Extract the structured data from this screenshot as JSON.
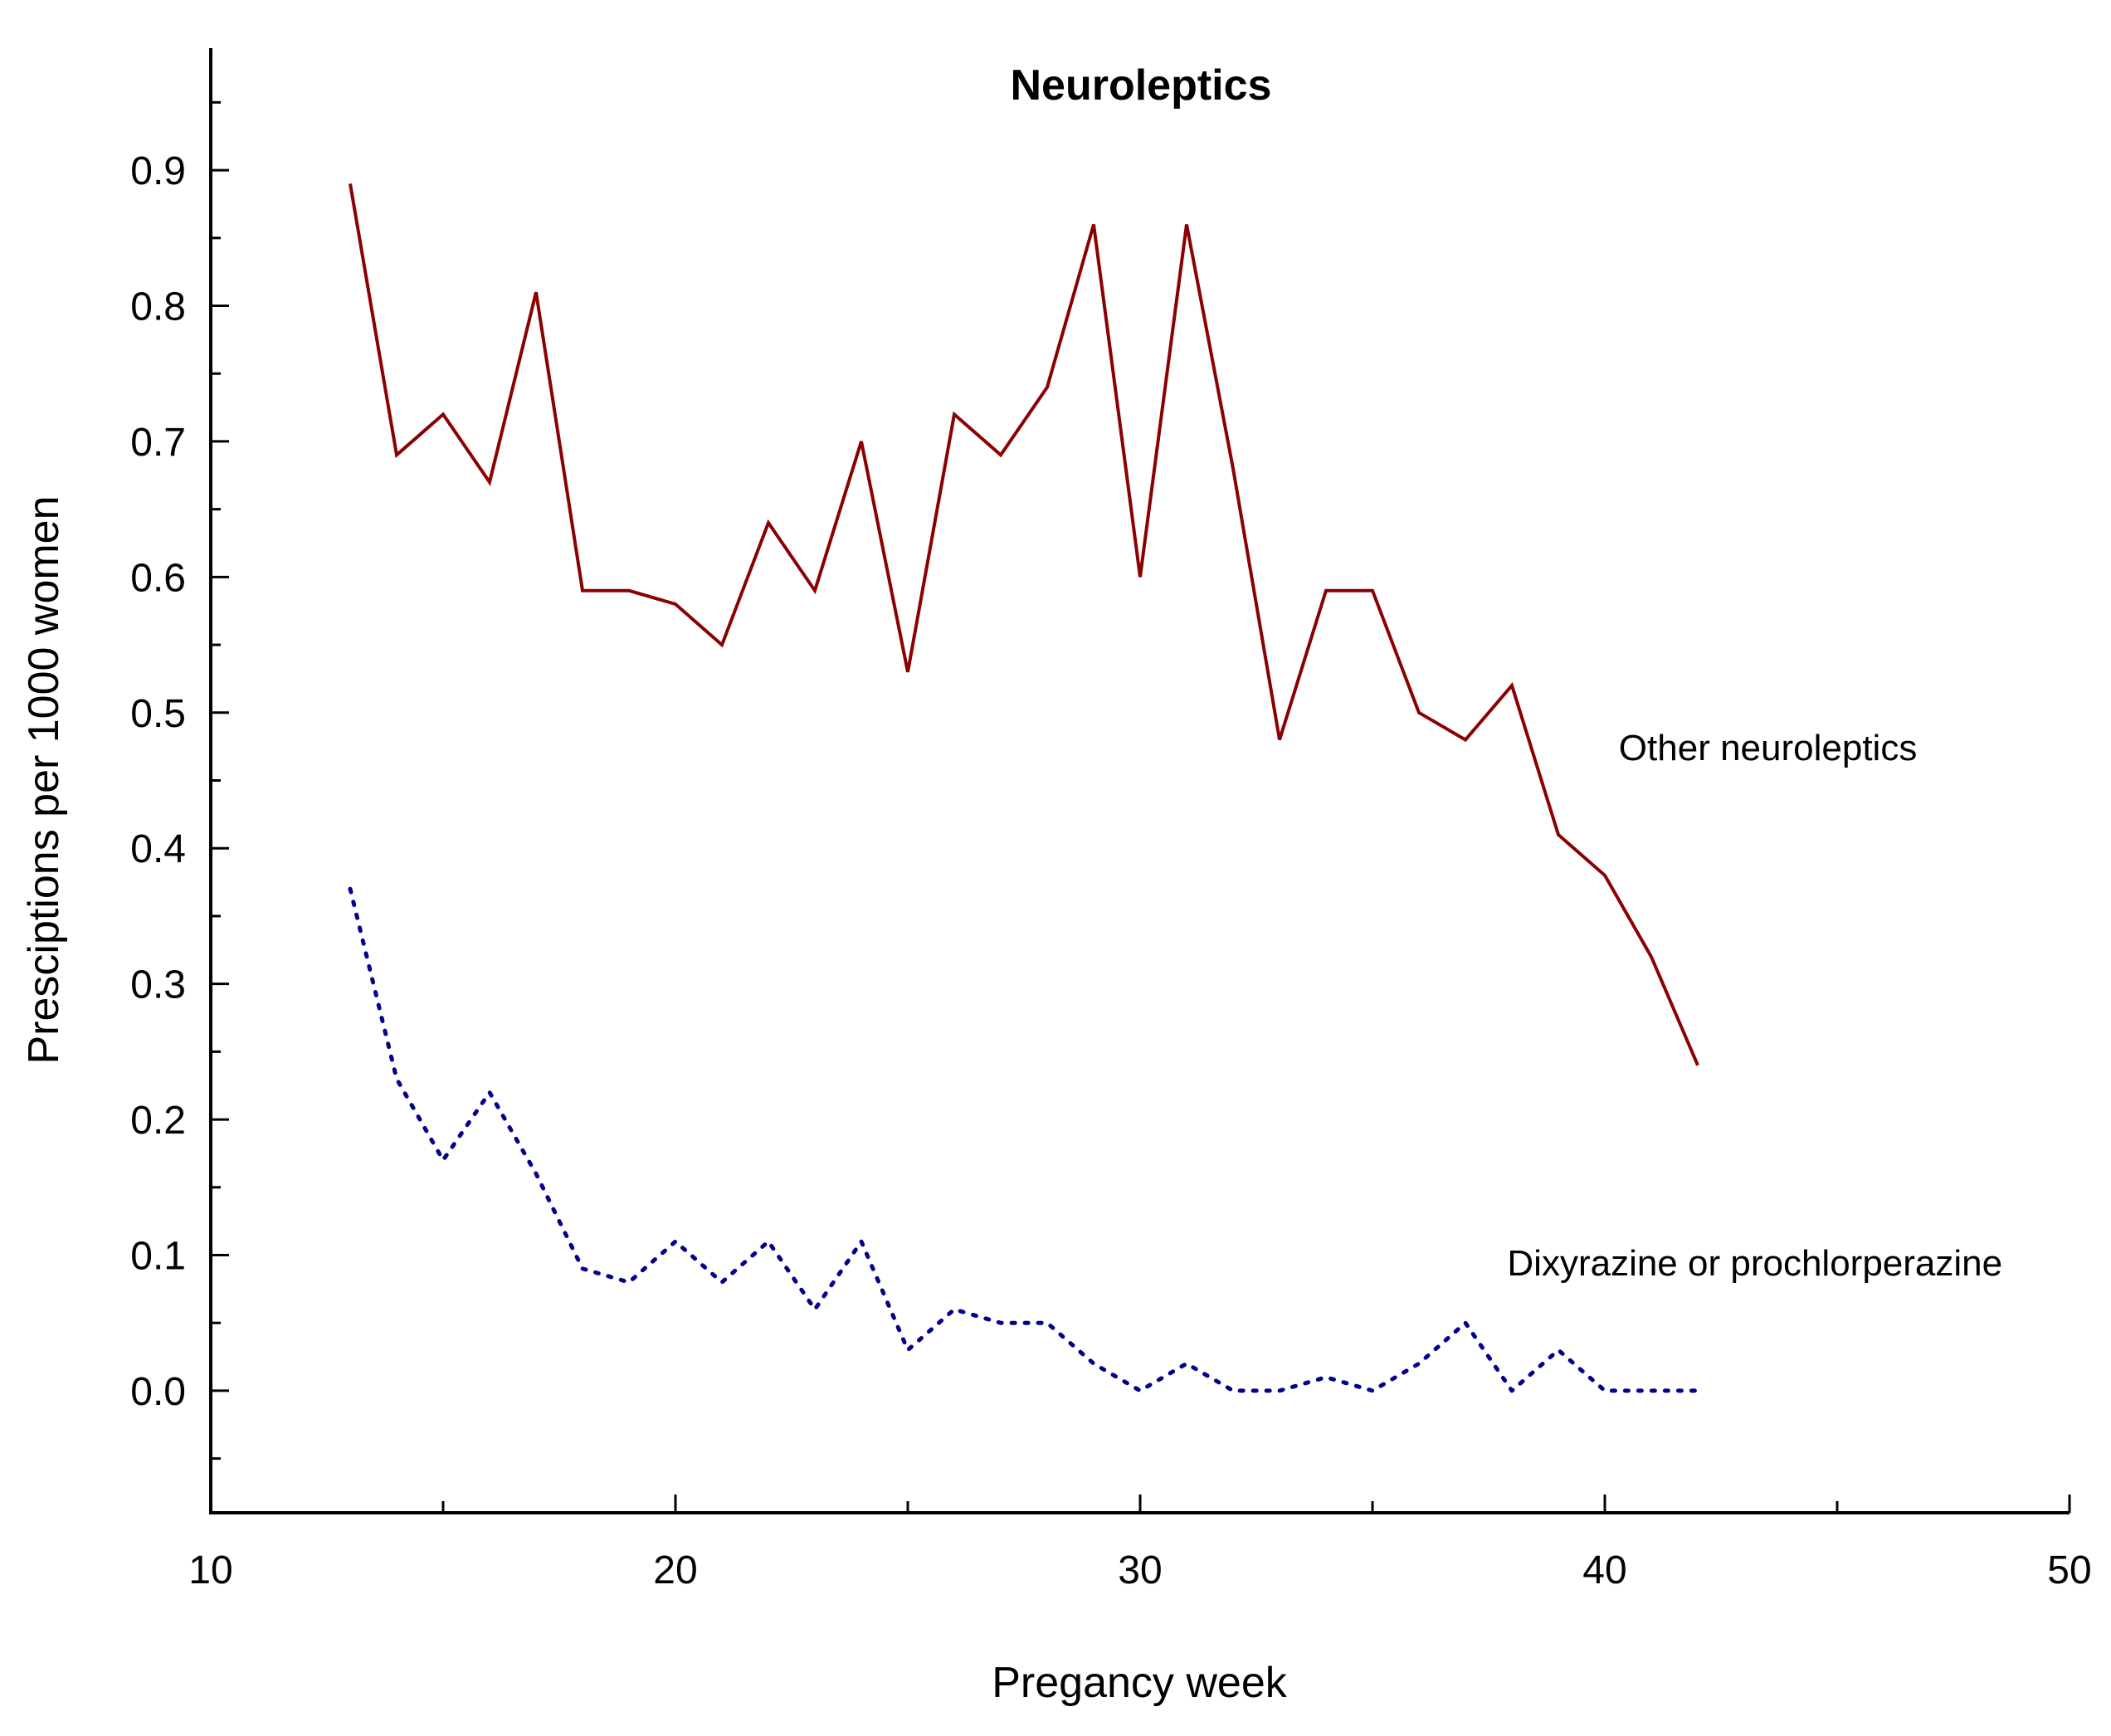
{
  "chart_data": {
    "type": "line",
    "title": "Neuroleptics",
    "xlabel": "Pregancy week",
    "ylabel": "Presciptions per 1000 women",
    "xlim": [
      10,
      50
    ],
    "ylim": [
      -0.09,
      0.99
    ],
    "xticks": [
      10,
      20,
      30,
      40,
      50
    ],
    "xtick_labels": [
      "10",
      "20",
      "30",
      "40",
      "50"
    ],
    "yticks": [
      0.0,
      0.1,
      0.2,
      0.3,
      0.4,
      0.5,
      0.6,
      0.7,
      0.8,
      0.9
    ],
    "ytick_labels": [
      "0.0",
      "0.1",
      "0.2",
      "0.3",
      "0.4",
      "0.5",
      "0.6",
      "0.7",
      "0.8",
      "0.9"
    ],
    "grid": false,
    "series": [
      {
        "name": "Other neuroleptics",
        "label": "Other neuroleptics",
        "color": "#8b0000",
        "style": "solid",
        "x": [
          13,
          14,
          15,
          16,
          17,
          18,
          19,
          20,
          21,
          22,
          23,
          24,
          25,
          26,
          27,
          28,
          29,
          30,
          31,
          32,
          33,
          34,
          35,
          36,
          37,
          38,
          39,
          40,
          41,
          42
        ],
        "y": [
          0.89,
          0.69,
          0.72,
          0.67,
          0.81,
          0.59,
          0.59,
          0.58,
          0.55,
          0.64,
          0.59,
          0.7,
          0.53,
          0.72,
          0.69,
          0.74,
          0.86,
          0.6,
          0.86,
          0.68,
          0.48,
          0.59,
          0.59,
          0.5,
          0.48,
          0.52,
          0.41,
          0.38,
          0.32,
          0.24
        ],
        "label_anchor": [
          40.3,
          0.465
        ]
      },
      {
        "name": "Dixyrazine or prochlorperazine",
        "label": "Dixyrazine or prochlorperazine",
        "color": "#00008b",
        "style": "dotted",
        "x": [
          13,
          14,
          15,
          16,
          17,
          18,
          19,
          20,
          21,
          22,
          23,
          24,
          25,
          26,
          27,
          28,
          29,
          30,
          31,
          32,
          33,
          34,
          35,
          36,
          37,
          38,
          39,
          40,
          41,
          42
        ],
        "y": [
          0.37,
          0.23,
          0.17,
          0.22,
          0.16,
          0.09,
          0.08,
          0.11,
          0.08,
          0.11,
          0.06,
          0.11,
          0.03,
          0.06,
          0.05,
          0.05,
          0.02,
          0.0,
          0.02,
          0.0,
          0.0,
          0.01,
          0.0,
          0.02,
          0.05,
          0.0,
          0.03,
          0.0,
          0.0,
          0.0
        ],
        "label_anchor": [
          37.9,
          0.085
        ]
      }
    ]
  }
}
